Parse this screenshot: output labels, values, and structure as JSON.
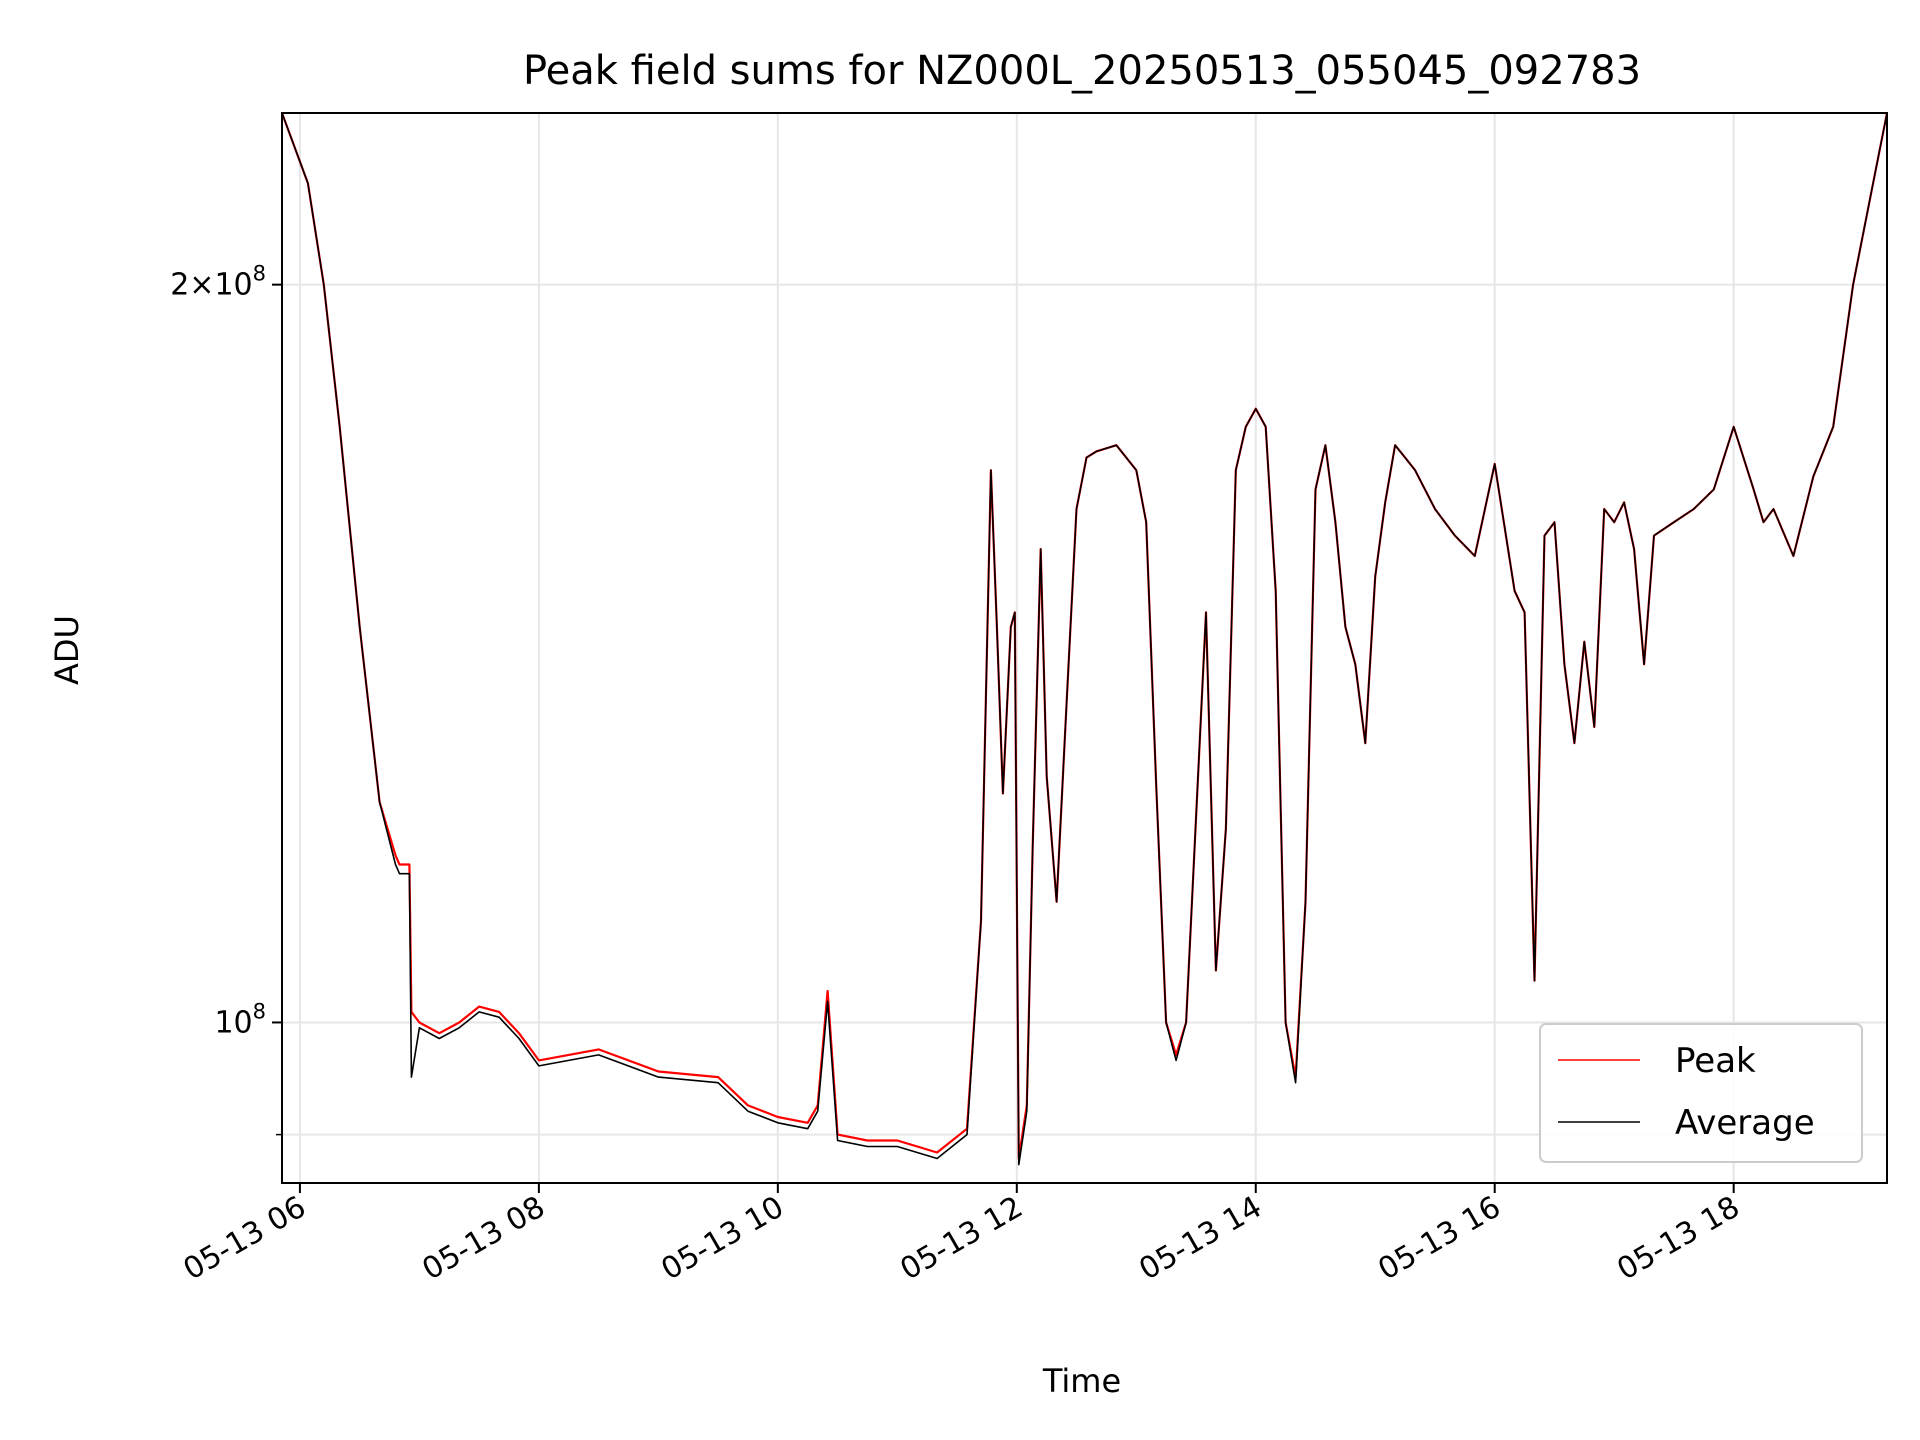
{
  "chart_data": {
    "type": "line",
    "title": "Peak field sums for NZ000L_20250513_055045_092783",
    "xlabel": "Time",
    "ylabel": "ADU",
    "y_scale": "log",
    "xlim": [
      "05-13 05:51",
      "05-13 19:17"
    ],
    "ylim": [
      86000000.0,
      235000000.0
    ],
    "x_ticks": [
      "05-13 06",
      "05-13 08",
      "05-13 10",
      "05-13 12",
      "05-13 14",
      "05-13 16",
      "05-13 18"
    ],
    "y_ticks": [
      {
        "value": 200000000.0,
        "base": "2",
        "mult": "×",
        "pow": "10",
        "exp": "8"
      },
      {
        "value": 100000000.0,
        "base": "",
        "mult": "",
        "pow": "10",
        "exp": "8"
      }
    ],
    "grid": true,
    "legend_position": "lower-right",
    "series": [
      {
        "name": "Peak",
        "color": "#ff0000",
        "x": [
          "05:51",
          "06:04",
          "06:12",
          "06:20",
          "06:30",
          "06:40",
          "06:48",
          "06:50",
          "06:55",
          "06:56",
          "07:00",
          "07:10",
          "07:20",
          "07:30",
          "07:40",
          "07:50",
          "08:00",
          "08:30",
          "09:00",
          "09:30",
          "09:45",
          "10:00",
          "10:15",
          "10:20",
          "10:25",
          "10:30",
          "10:45",
          "11:00",
          "11:20",
          "11:35",
          "11:42",
          "11:47",
          "11:50",
          "11:53",
          "11:57",
          "11:59",
          "12:01",
          "12:05",
          "12:08",
          "12:12",
          "12:15",
          "12:20",
          "12:25",
          "12:30",
          "12:35",
          "12:40",
          "12:50",
          "13:00",
          "13:05",
          "13:10",
          "13:15",
          "13:20",
          "13:25",
          "13:35",
          "13:40",
          "13:45",
          "13:50",
          "13:55",
          "14:00",
          "14:05",
          "14:10",
          "14:15",
          "14:20",
          "14:25",
          "14:30",
          "14:35",
          "14:40",
          "14:45",
          "14:50",
          "14:55",
          "15:00",
          "15:05",
          "15:10",
          "15:15",
          "15:20",
          "15:30",
          "15:40",
          "15:50",
          "16:00",
          "16:10",
          "16:15",
          "16:20",
          "16:25",
          "16:30",
          "16:35",
          "16:40",
          "16:45",
          "16:50",
          "16:55",
          "17:00",
          "17:05",
          "17:10",
          "17:15",
          "17:20",
          "17:30",
          "17:40",
          "17:50",
          "18:00",
          "18:10",
          "18:15",
          "18:20",
          "18:30",
          "18:40",
          "18:50",
          "19:00",
          "19:10",
          "19:17"
        ],
        "y": [
          235000000.0,
          220000000.0,
          200000000.0,
          175000000.0,
          145000000.0,
          123000000.0,
          117000000.0,
          116000000.0,
          116000000.0,
          101000000.0,
          100000000.0,
          99000000.0,
          100000000.0,
          101500000.0,
          101000000.0,
          99000000.0,
          96500000.0,
          97500000.0,
          95500000.0,
          95000000.0,
          92500000.0,
          91500000.0,
          91000000.0,
          92500000.0,
          103000000.0,
          90000000.0,
          89500000.0,
          89500000.0,
          88500000.0,
          90500000.0,
          110000000.0,
          168000000.0,
          145000000.0,
          124000000.0,
          145000000.0,
          147000000.0,
          88000000.0,
          92500000.0,
          118000000.0,
          156000000.0,
          126000000.0,
          112000000.0,
          135000000.0,
          162000000.0,
          170000000.0,
          171000000.0,
          172000000.0,
          168000000.0,
          160000000.0,
          125000000.0,
          100000000.0,
          97000000.0,
          100000000.0,
          147000000.0,
          105000000.0,
          120000000.0,
          168000000.0,
          175000000.0,
          178000000.0,
          175000000.0,
          150000000.0,
          100000000.0,
          95000000.0,
          112000000.0,
          165000000.0,
          172000000.0,
          160000000.0,
          145000000.0,
          140000000.0,
          130000000.0,
          152000000.0,
          163000000.0,
          172000000.0,
          170000000.0,
          168000000.0,
          162000000.0,
          158000000.0,
          155000000.0,
          169000000.0,
          150000000.0,
          147000000.0,
          104000000.0,
          158000000.0,
          160000000.0,
          140000000.0,
          130000000.0,
          143000000.0,
          132000000.0,
          162000000.0,
          160000000.0,
          163000000.0,
          156000000.0,
          140000000.0,
          158000000.0,
          160000000.0,
          162000000.0,
          165000000.0,
          175000000.0,
          165000000.0,
          160000000.0,
          162000000.0,
          155000000.0,
          167000000.0,
          175000000.0,
          200000000.0,
          220000000.0,
          235000000.0
        ]
      },
      {
        "name": "Average",
        "color": "#000000",
        "x": [
          "05:51",
          "06:04",
          "06:12",
          "06:20",
          "06:30",
          "06:40",
          "06:48",
          "06:50",
          "06:55",
          "06:56",
          "07:00",
          "07:10",
          "07:20",
          "07:30",
          "07:40",
          "07:50",
          "08:00",
          "08:30",
          "09:00",
          "09:30",
          "09:45",
          "10:00",
          "10:15",
          "10:20",
          "10:25",
          "10:30",
          "10:45",
          "11:00",
          "11:20",
          "11:35",
          "11:42",
          "11:47",
          "11:50",
          "11:53",
          "11:57",
          "11:59",
          "12:01",
          "12:05",
          "12:08",
          "12:12",
          "12:15",
          "12:20",
          "12:25",
          "12:30",
          "12:35",
          "12:40",
          "12:50",
          "13:00",
          "13:05",
          "13:10",
          "13:15",
          "13:20",
          "13:25",
          "13:35",
          "13:40",
          "13:45",
          "13:50",
          "13:55",
          "14:00",
          "14:05",
          "14:10",
          "14:15",
          "14:20",
          "14:25",
          "14:30",
          "14:35",
          "14:40",
          "14:45",
          "14:50",
          "14:55",
          "15:00",
          "15:05",
          "15:10",
          "15:15",
          "15:20",
          "15:30",
          "15:40",
          "15:50",
          "16:00",
          "16:10",
          "16:15",
          "16:20",
          "16:25",
          "16:30",
          "16:35",
          "16:40",
          "16:45",
          "16:50",
          "16:55",
          "17:00",
          "17:05",
          "17:10",
          "17:15",
          "17:20",
          "17:30",
          "17:40",
          "17:50",
          "18:00",
          "18:10",
          "18:15",
          "18:20",
          "18:30",
          "18:40",
          "18:50",
          "19:00",
          "19:10",
          "19:17"
        ],
        "y": [
          235000000.0,
          220000000.0,
          200000000.0,
          175000000.0,
          145000000.0,
          123000000.0,
          116000000.0,
          115000000.0,
          115000000.0,
          95000000.0,
          99500000.0,
          98500000.0,
          99500000.0,
          101000000.0,
          100500000.0,
          98500000.0,
          96000000.0,
          97000000.0,
          95000000.0,
          94500000.0,
          92000000.0,
          91000000.0,
          90500000.0,
          92000000.0,
          102000000.0,
          89500000.0,
          89000000.0,
          89000000.0,
          88000000.0,
          90000000.0,
          110000000.0,
          168000000.0,
          145000000.0,
          124000000.0,
          145000000.0,
          147000000.0,
          87500000.0,
          92000000.0,
          118000000.0,
          156000000.0,
          126000000.0,
          112000000.0,
          135000000.0,
          162000000.0,
          170000000.0,
          171000000.0,
          172000000.0,
          168000000.0,
          160000000.0,
          125000000.0,
          100000000.0,
          96500000.0,
          100000000.0,
          147000000.0,
          105000000.0,
          120000000.0,
          168000000.0,
          175000000.0,
          178000000.0,
          175000000.0,
          150000000.0,
          100000000.0,
          94500000.0,
          112000000.0,
          165000000.0,
          172000000.0,
          160000000.0,
          145000000.0,
          140000000.0,
          130000000.0,
          152000000.0,
          163000000.0,
          172000000.0,
          170000000.0,
          168000000.0,
          162000000.0,
          158000000.0,
          155000000.0,
          169000000.0,
          150000000.0,
          147000000.0,
          104000000.0,
          158000000.0,
          160000000.0,
          140000000.0,
          130000000.0,
          143000000.0,
          132000000.0,
          162000000.0,
          160000000.0,
          163000000.0,
          156000000.0,
          140000000.0,
          158000000.0,
          160000000.0,
          162000000.0,
          165000000.0,
          175000000.0,
          165000000.0,
          160000000.0,
          162000000.0,
          155000000.0,
          167000000.0,
          175000000.0,
          200000000.0,
          220000000.0,
          235000000.0
        ]
      }
    ]
  }
}
